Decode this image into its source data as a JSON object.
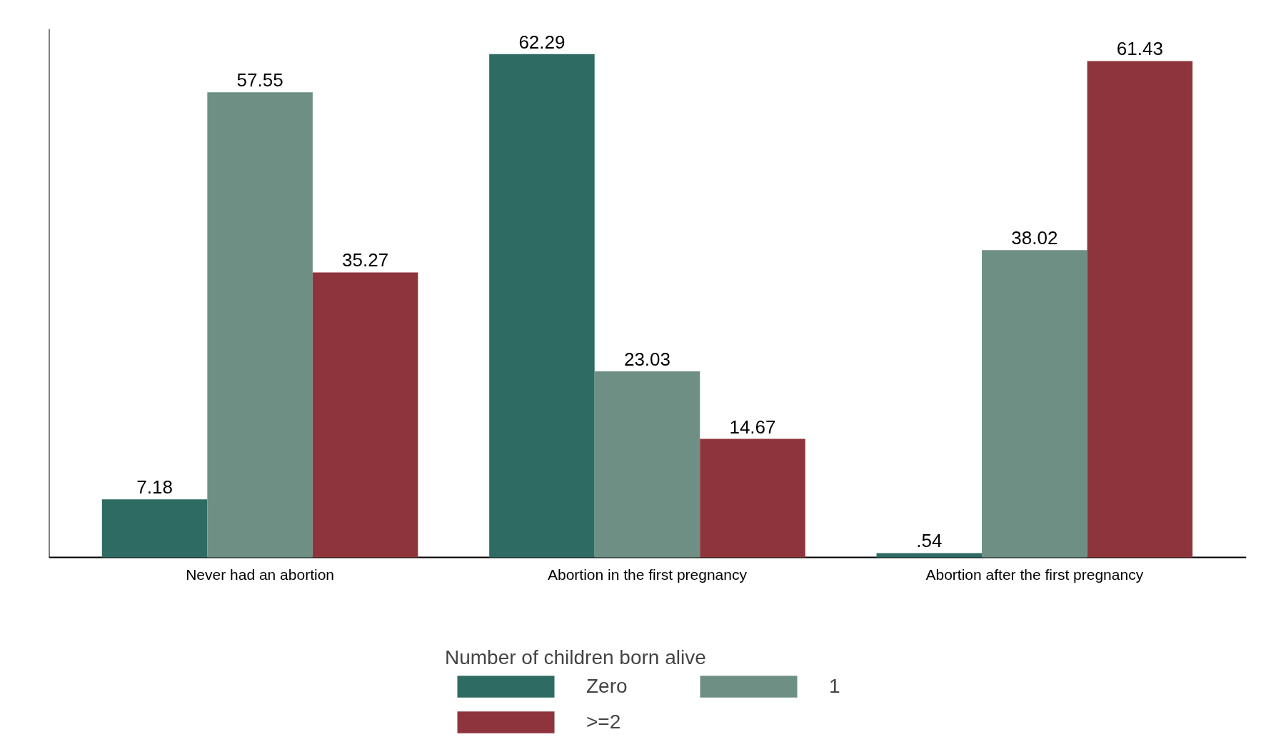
{
  "chart_data": {
    "type": "bar",
    "categories": [
      "Never had an abortion",
      "Abortion in the first pregnancy",
      "Abortion after the first pregnancy"
    ],
    "legend_title": "Number of children born alive",
    "series": [
      {
        "name": "Zero",
        "color": "#2e6b63",
        "values": [
          7.18,
          62.29,
          0.54
        ],
        "value_labels": [
          "7.18",
          "62.29",
          ".54"
        ]
      },
      {
        "name": "1",
        "color": "#6e8f83",
        "values": [
          57.55,
          23.03,
          38.02
        ],
        "value_labels": [
          "57.55",
          "23.03",
          "38.02"
        ]
      },
      {
        "name": ">=2",
        "color": "#8e343c",
        "values": [
          35.27,
          14.67,
          61.43
        ],
        "value_labels": [
          "35.27",
          "14.67",
          "61.43"
        ]
      }
    ],
    "legend": "bottom",
    "tick_labels": "x"
  }
}
